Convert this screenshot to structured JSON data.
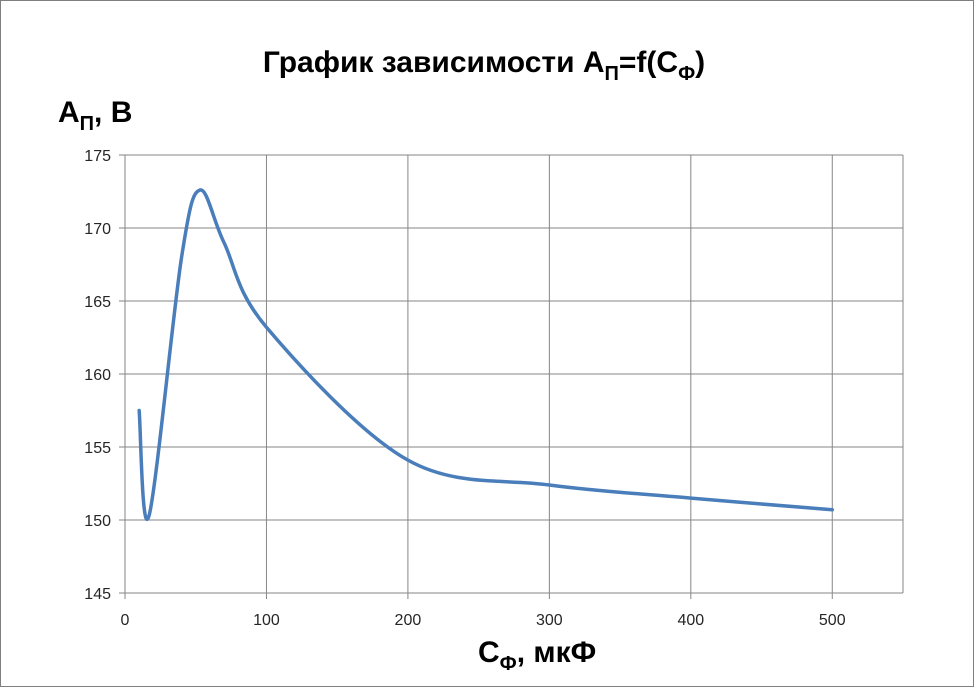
{
  "chart_data": {
    "type": "line",
    "title": {
      "main": "График зависимости A",
      "main_sub": "П",
      "middle": "=f(C",
      "middle_sub": "Ф",
      "end": ")"
    },
    "ylabel": {
      "main": "A",
      "sub": "П",
      "rest": ", В"
    },
    "xlabel": {
      "main": "C",
      "sub": "Ф",
      "rest": ", мкФ"
    },
    "xlim": [
      0,
      550
    ],
    "ylim": [
      145,
      175
    ],
    "x_ticks": [
      0,
      100,
      200,
      300,
      400,
      500
    ],
    "y_ticks": [
      145,
      150,
      155,
      160,
      165,
      170,
      175
    ],
    "grid": true,
    "legend": "none",
    "series": [
      {
        "x": [
          10,
          17,
          40,
          53,
          70,
          100,
          200,
          300,
          400,
          500
        ],
        "y": [
          157.5,
          150.3,
          168.0,
          172.6,
          169.0,
          163.2,
          154.1,
          152.4,
          151.5,
          150.7
        ]
      }
    ],
    "colors": {
      "line": "#4a7ebb",
      "grid": "#868686"
    }
  }
}
